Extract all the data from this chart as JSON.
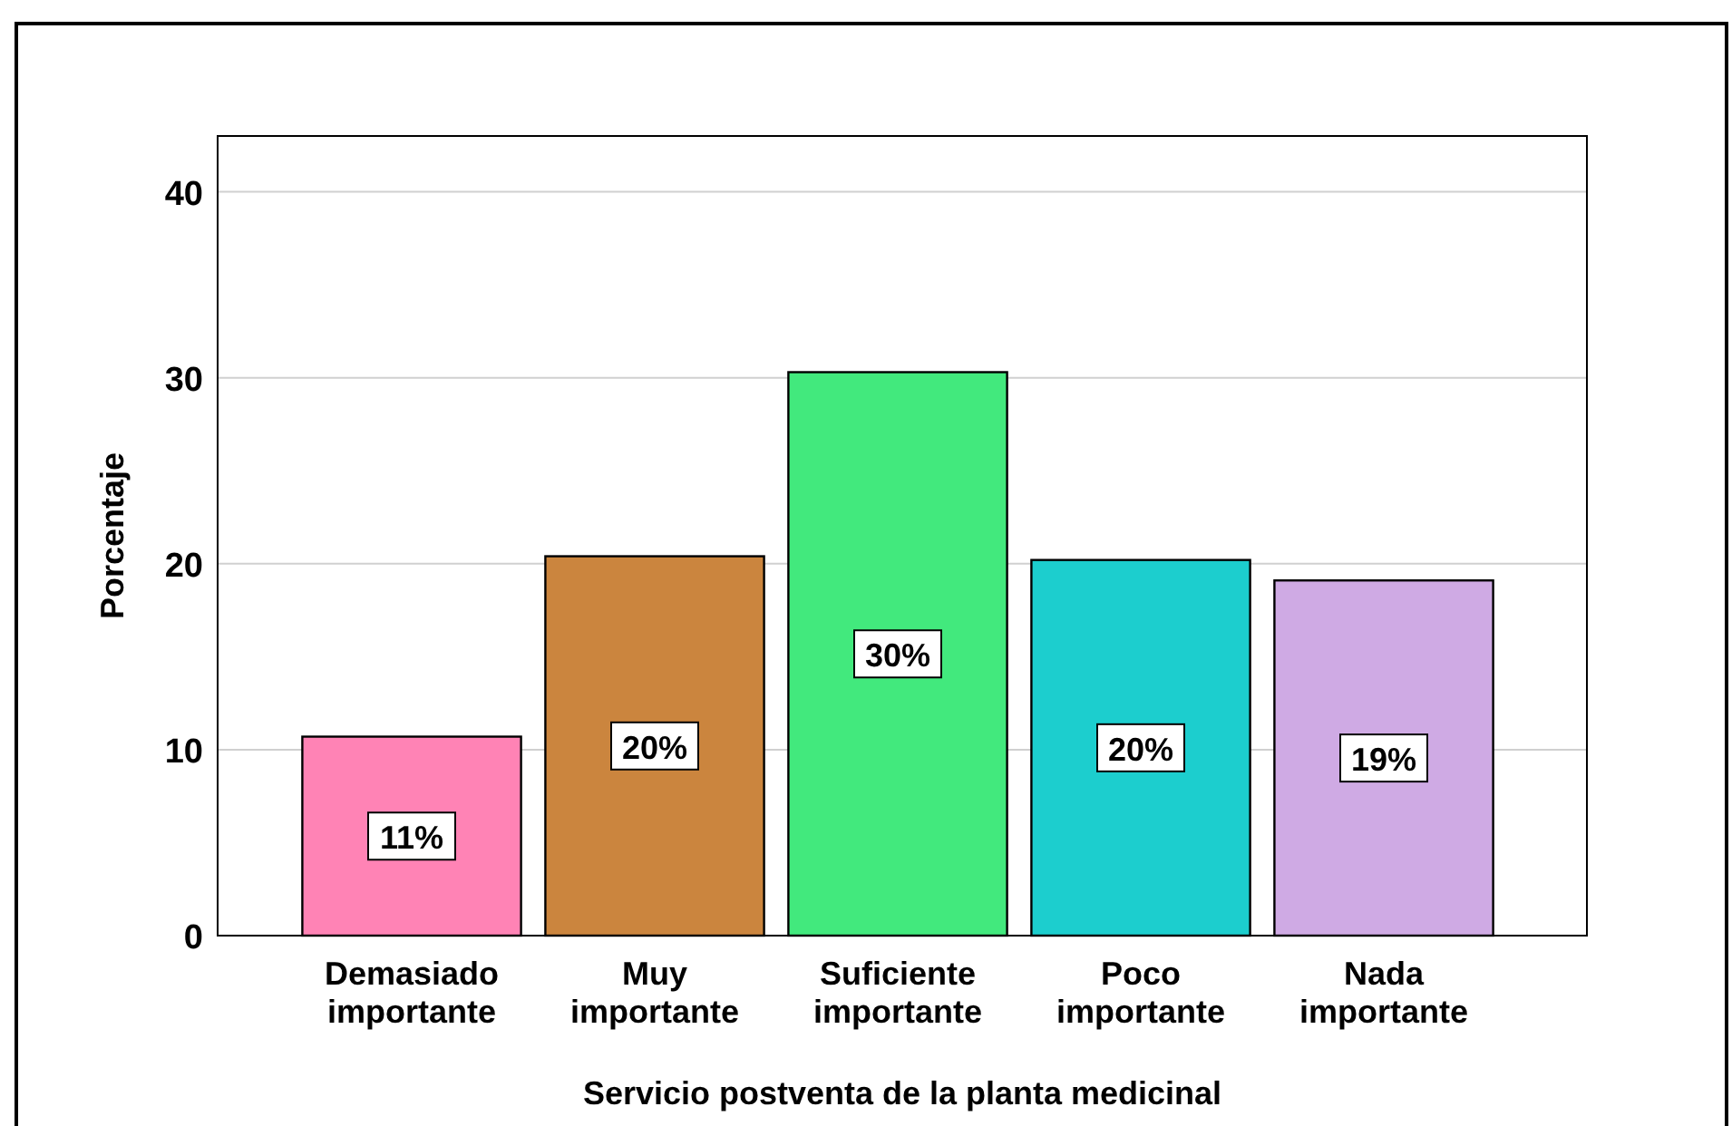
{
  "chart_data": {
    "type": "bar",
    "xlabel": "Servicio postventa de la planta medicinal",
    "ylabel": "Porcentaje",
    "categories": [
      "Demasiado importante",
      "Muy importante",
      "Suficiente importante",
      "Poco importante",
      "Nada importante"
    ],
    "values": [
      10.7,
      20.4,
      30.3,
      20.2,
      19.1
    ],
    "colors": [
      "#ff83b5",
      "#cb853e",
      "#42e97d",
      "#1ccece",
      "#cfaae4"
    ],
    "value_labels": [
      "11%",
      "20%",
      "30%",
      "20%",
      "19%"
    ],
    "ylim": [
      0,
      43
    ],
    "yticks": [
      0,
      10,
      20,
      30,
      40
    ],
    "grid": "y"
  }
}
